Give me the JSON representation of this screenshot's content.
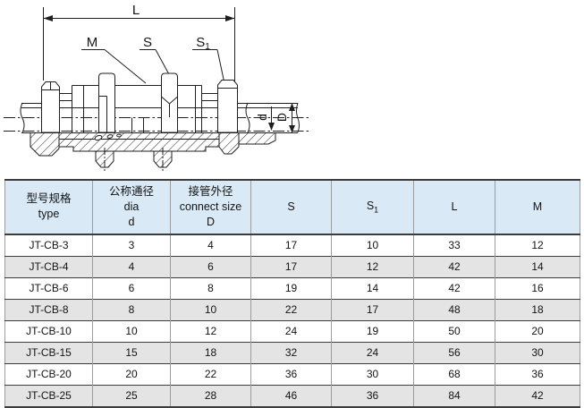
{
  "drawing": {
    "labels": {
      "L": "L",
      "M": "M",
      "S": "S",
      "S1_base": "S",
      "S1_sub": "1",
      "d": "d",
      "D": "D"
    }
  },
  "table": {
    "columns": [
      {
        "lines": [
          "型号规格",
          "type"
        ]
      },
      {
        "lines": [
          "公称通径",
          "dia",
          "d"
        ]
      },
      {
        "lines": [
          "接管外径",
          "connect size",
          "D"
        ]
      },
      {
        "lines": [
          "S"
        ]
      },
      {
        "lines": [
          "S"
        ],
        "sub": "1"
      },
      {
        "lines": [
          "L"
        ]
      },
      {
        "lines": [
          "M"
        ]
      }
    ],
    "rows": [
      [
        "JT-CB-3",
        "3",
        "4",
        "17",
        "10",
        "33",
        "12"
      ],
      [
        "JT-CB-4",
        "4",
        "6",
        "17",
        "12",
        "42",
        "14"
      ],
      [
        "JT-CB-6",
        "6",
        "8",
        "19",
        "14",
        "42",
        "16"
      ],
      [
        "JT-CB-8",
        "8",
        "10",
        "22",
        "17",
        "48",
        "18"
      ],
      [
        "JT-CB-10",
        "10",
        "12",
        "24",
        "19",
        "50",
        "20"
      ],
      [
        "JT-CB-15",
        "15",
        "18",
        "32",
        "24",
        "56",
        "30"
      ],
      [
        "JT-CB-20",
        "20",
        "22",
        "36",
        "30",
        "68",
        "36"
      ],
      [
        "JT-CB-25",
        "25",
        "28",
        "46",
        "36",
        "84",
        "42"
      ]
    ]
  },
  "colors": {
    "header_bg": "#d9e9f6",
    "row_alt": "#e4e4e4",
    "border_dark": "#3c3c3c",
    "border_light": "#9c9c9c",
    "line": "#1f1f1f"
  }
}
